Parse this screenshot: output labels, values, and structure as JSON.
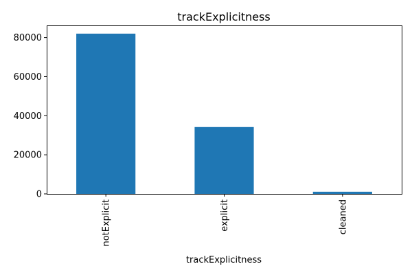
{
  "chart_data": {
    "type": "bar",
    "title": "trackExplicitness",
    "xlabel": "trackExplicitness",
    "ylabel": "",
    "categories": [
      "notExplicit",
      "explicit",
      "cleaned"
    ],
    "values": [
      82000,
      34200,
      1100
    ],
    "ylim": [
      0,
      86200
    ],
    "yticks": [
      0,
      20000,
      40000,
      60000,
      80000
    ],
    "grid": false,
    "legend": "none",
    "bar_color": "#1f77b4"
  }
}
